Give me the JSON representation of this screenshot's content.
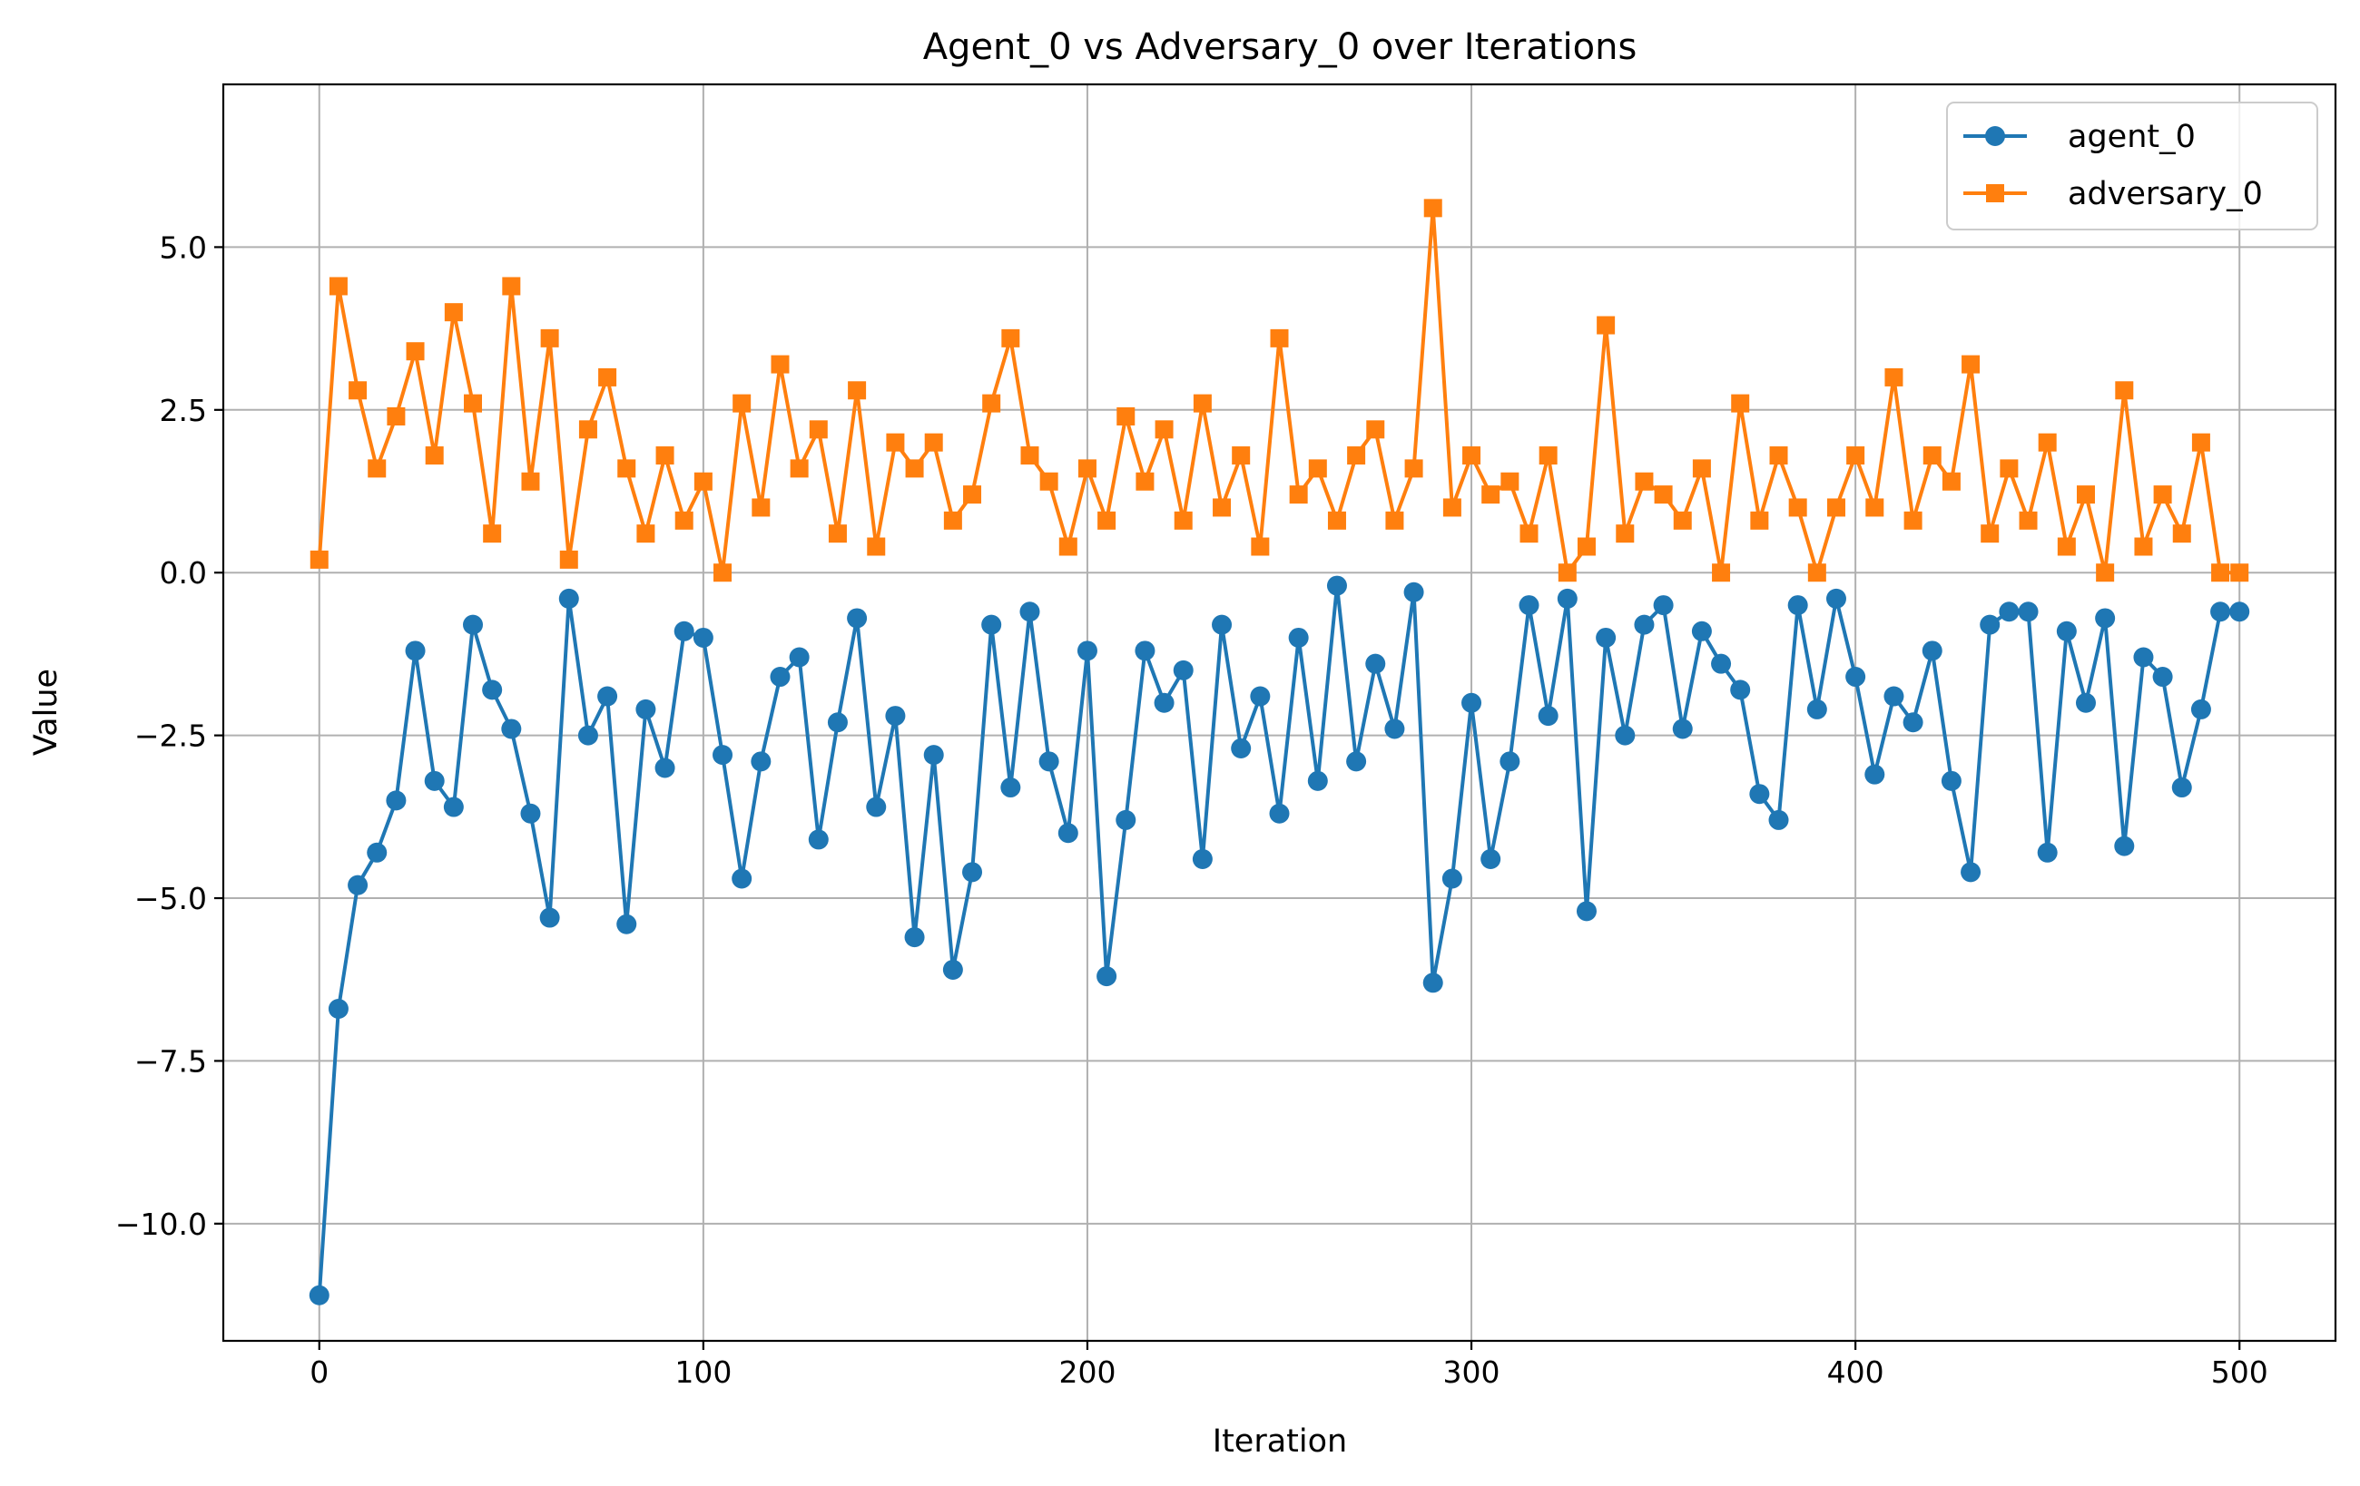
{
  "chart_data": {
    "type": "line",
    "title": "Agent_0 vs Adversary_0 over Iterations",
    "xlabel": "Iteration",
    "ylabel": "Value",
    "xlim": [
      -25,
      525
    ],
    "ylim": [
      -11.8,
      7.5
    ],
    "grid": true,
    "legend_position": "top-right",
    "x_ticks": [
      0,
      100,
      200,
      300,
      400,
      500
    ],
    "x_tick_labels": [
      "0",
      "100",
      "200",
      "300",
      "400",
      "500"
    ],
    "y_ticks": [
      5.0,
      2.5,
      0.0,
      -2.5,
      -5.0,
      -7.5,
      -10.0
    ],
    "y_tick_labels": [
      "5.0",
      "2.5",
      "0.0",
      "−2.5",
      "−5.0",
      "−7.5",
      "−10.0"
    ],
    "x": [
      0,
      5,
      10,
      15,
      20,
      25,
      30,
      35,
      40,
      45,
      50,
      55,
      60,
      65,
      70,
      75,
      80,
      85,
      90,
      95,
      100,
      105,
      110,
      115,
      120,
      125,
      130,
      135,
      140,
      145,
      150,
      155,
      160,
      165,
      170,
      175,
      180,
      185,
      190,
      195,
      200,
      205,
      210,
      215,
      220,
      225,
      230,
      235,
      240,
      245,
      250,
      255,
      260,
      265,
      270,
      275,
      280,
      285,
      290,
      295,
      300,
      305,
      310,
      315,
      320,
      325,
      330,
      335,
      340,
      345,
      350,
      355,
      360,
      365,
      370,
      375,
      380,
      385,
      390,
      395,
      400,
      405,
      410,
      415,
      420,
      425,
      430,
      435,
      440,
      445,
      450,
      455,
      460,
      465,
      470,
      475,
      480,
      485,
      490,
      495,
      500
    ],
    "series": [
      {
        "name": "agent_0",
        "color": "#1f77b4",
        "marker": "circle",
        "values": [
          -11.1,
          -6.7,
          -4.8,
          -4.3,
          -3.5,
          -1.2,
          -3.2,
          -3.6,
          -0.8,
          -1.8,
          -2.4,
          -3.7,
          -5.3,
          -0.4,
          -2.5,
          -1.9,
          -5.4,
          -2.1,
          -3.0,
          -0.9,
          -1.0,
          -2.8,
          -4.7,
          -2.9,
          -1.6,
          -1.3,
          -4.1,
          -2.3,
          -0.7,
          -3.6,
          -2.2,
          -5.6,
          -2.8,
          -6.1,
          -4.6,
          -0.8,
          -3.3,
          -0.6,
          -2.9,
          -4.0,
          -1.2,
          -6.2,
          -3.8,
          -1.2,
          -2.0,
          -1.5,
          -4.4,
          -0.8,
          -2.7,
          -1.9,
          -3.7,
          -1.0,
          -3.2,
          -0.2,
          -2.9,
          -1.4,
          -2.4,
          -0.3,
          -6.3,
          -4.7,
          -2.0,
          -4.4,
          -2.9,
          -0.5,
          -2.2,
          -0.4,
          -5.2,
          -1.0,
          -2.5,
          -0.8,
          -0.5,
          -2.4,
          -0.9,
          -1.4,
          -1.8,
          -3.4,
          -3.8,
          -0.5,
          -2.1,
          -0.4,
          -1.6,
          -3.1,
          -1.9,
          -2.3,
          -1.2,
          -3.2,
          -4.6,
          -0.8,
          -0.6,
          -0.6,
          -4.3,
          -0.9,
          -2.0,
          -0.7,
          -4.2,
          -1.3,
          -1.6,
          -3.3,
          -2.1,
          -0.6,
          -0.6
        ]
      },
      {
        "name": "adversary_0",
        "color": "#ff7f0e",
        "marker": "square",
        "values": [
          0.2,
          4.4,
          2.8,
          1.6,
          2.4,
          3.4,
          1.8,
          4.0,
          2.6,
          0.6,
          4.4,
          1.4,
          3.6,
          0.2,
          2.2,
          3.0,
          1.6,
          0.6,
          1.8,
          0.8,
          1.4,
          0.0,
          2.6,
          1.0,
          3.2,
          1.6,
          2.2,
          0.6,
          2.8,
          0.4,
          2.0,
          1.6,
          2.0,
          0.8,
          1.2,
          2.6,
          3.6,
          1.8,
          1.4,
          0.4,
          1.6,
          0.8,
          2.4,
          1.4,
          2.2,
          0.8,
          2.6,
          1.0,
          1.8,
          0.4,
          3.6,
          1.2,
          1.6,
          0.8,
          1.8,
          2.2,
          0.8,
          1.6,
          5.6,
          1.0,
          1.8,
          1.2,
          1.4,
          0.6,
          1.8,
          0.0,
          0.4,
          3.8,
          0.6,
          1.4,
          1.2,
          0.8,
          1.6,
          0.0,
          2.6,
          0.8,
          1.8,
          1.0,
          0.0,
          1.0,
          1.8,
          1.0,
          3.0,
          0.8,
          1.8,
          1.4,
          3.2,
          0.6,
          1.6,
          0.8,
          2.0,
          0.4,
          1.2,
          0.0,
          2.8,
          0.4,
          1.2,
          0.6,
          2.0,
          0.0,
          0.0
        ]
      }
    ]
  }
}
